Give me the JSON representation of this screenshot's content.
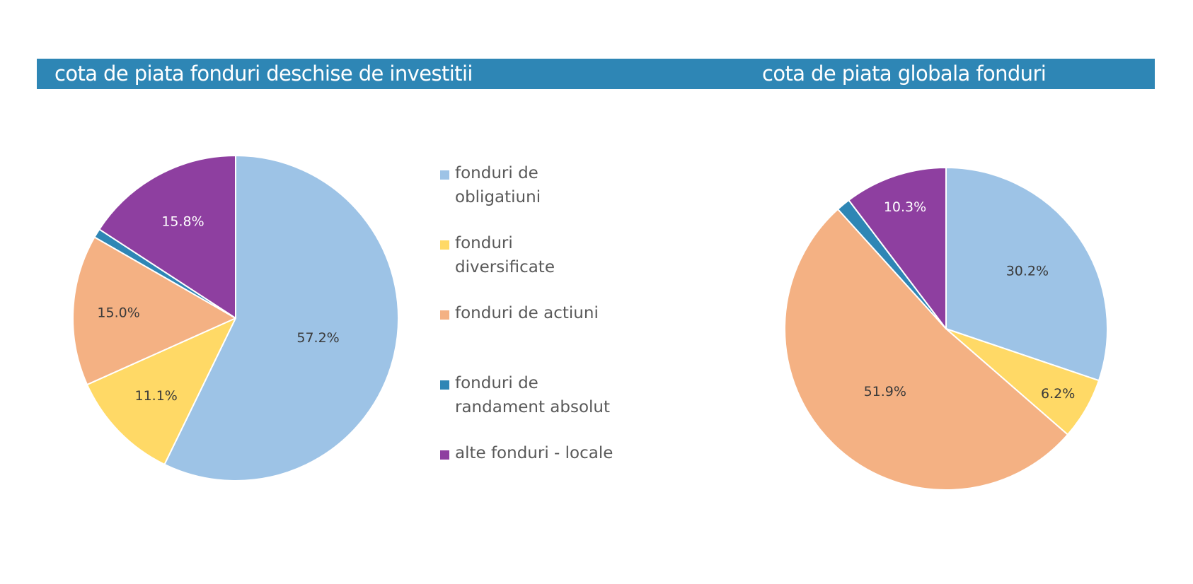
{
  "chart_data": [
    {
      "type": "pie",
      "title": "cota de piata fonduri deschise de investitii",
      "categories": [
        "fonduri de obligatiuni",
        "fonduri diversificate",
        "fonduri de actiuni",
        "fonduri de randament absolut",
        "alte fonduri - locale"
      ],
      "values": [
        57.2,
        11.1,
        15.0,
        0.9,
        15.8
      ],
      "labels": [
        "57.2%",
        "11.1%",
        "15.0%",
        "",
        "15.8%"
      ],
      "colors": [
        "#9dc3e6",
        "#ffd966",
        "#f4b183",
        "#2e86b5",
        "#8e3fa0"
      ],
      "label_colors": [
        "#3a3a3a",
        "#3a3a3a",
        "#3a3a3a",
        "#3a3a3a",
        "#ffffff"
      ],
      "legend": "right"
    },
    {
      "type": "pie",
      "title": "cota de piata globala fonduri",
      "categories": [
        "fonduri de obligatiuni",
        "fonduri diversificate",
        "fonduri de actiuni",
        "fonduri de randament absolut",
        "alte fonduri - locale"
      ],
      "values": [
        30.2,
        6.2,
        51.9,
        1.4,
        10.3
      ],
      "labels": [
        "30.2%",
        "6.2%",
        "51.9%",
        "",
        "10.3%"
      ],
      "colors": [
        "#9dc3e6",
        "#ffd966",
        "#f4b183",
        "#2e86b5",
        "#8e3fa0"
      ],
      "label_colors": [
        "#3a3a3a",
        "#3a3a3a",
        "#3a3a3a",
        "#3a3a3a",
        "#ffffff"
      ],
      "legend": "none"
    }
  ],
  "legend": {
    "items": [
      {
        "label": "fonduri de obligatiuni",
        "color": "#9dc3e6"
      },
      {
        "label": "fonduri diversificate",
        "color": "#ffd966"
      },
      {
        "label": "fonduri de actiuni",
        "color": "#f4b183"
      },
      {
        "label": "fonduri de randament absolut",
        "color": "#2e86b5"
      },
      {
        "label": "alte fonduri - locale",
        "color": "#8e3fa0"
      }
    ]
  },
  "header": {
    "left_title": "cota de piata fonduri deschise de investitii",
    "right_title": "cota de piata globala fonduri",
    "color": "#2e86b5"
  }
}
